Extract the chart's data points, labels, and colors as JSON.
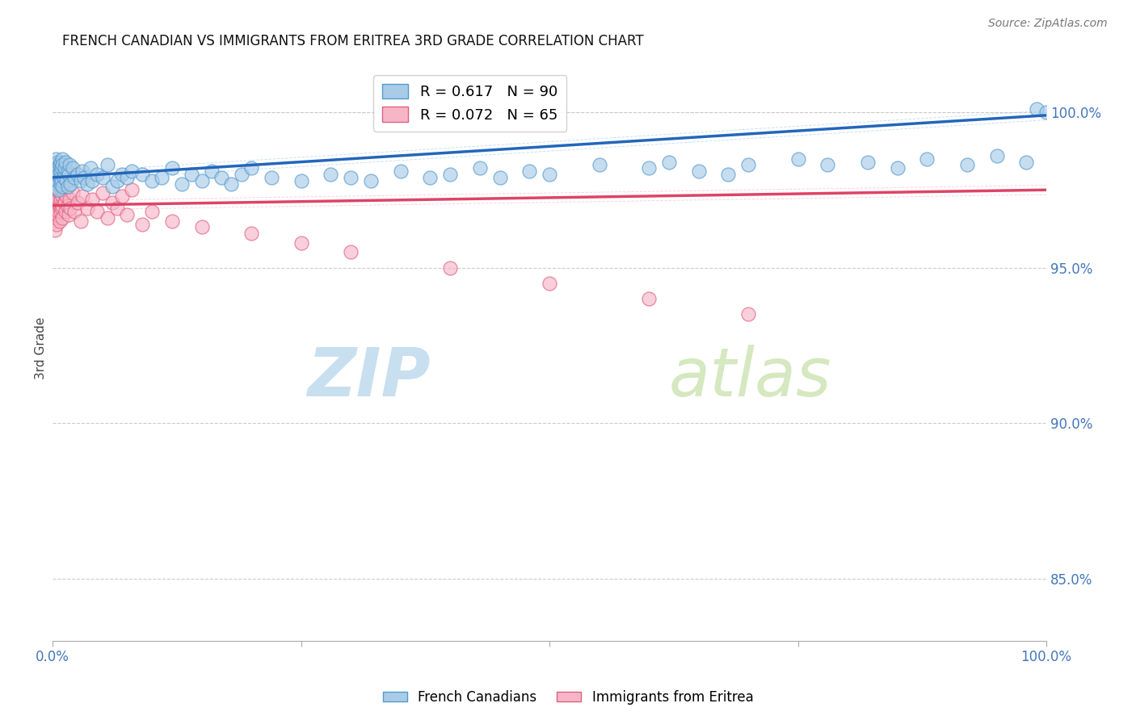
{
  "title": "FRENCH CANADIAN VS IMMIGRANTS FROM ERITREA 3RD GRADE CORRELATION CHART",
  "source": "Source: ZipAtlas.com",
  "ylabel": "3rd Grade",
  "right_yticks": [
    100.0,
    95.0,
    90.0,
    85.0
  ],
  "ylim_min": 83.0,
  "ylim_max": 101.8,
  "blue_R": 0.617,
  "blue_N": 90,
  "pink_R": 0.072,
  "pink_N": 65,
  "legend_blue": "French Canadians",
  "legend_pink": "Immigrants from Eritrea",
  "blue_color": "#a8cce8",
  "blue_edge": "#5599cc",
  "pink_color": "#f7b6c8",
  "pink_edge": "#e06080",
  "trend_blue": "#2266bb",
  "trend_pink": "#dd4466",
  "bg_color": "#ffffff",
  "grid_color": "#cccccc",
  "axis_color": "#4477bb",
  "title_color": "#111111",
  "watermark_zip_color": "#c8dff0",
  "watermark_atlas_color": "#d5e8c0",
  "blue_scatter_x": [
    0.001,
    0.002,
    0.002,
    0.003,
    0.003,
    0.003,
    0.004,
    0.004,
    0.005,
    0.005,
    0.005,
    0.006,
    0.006,
    0.007,
    0.007,
    0.008,
    0.008,
    0.008,
    0.009,
    0.009,
    0.01,
    0.01,
    0.01,
    0.011,
    0.011,
    0.012,
    0.013,
    0.014,
    0.015,
    0.015,
    0.016,
    0.017,
    0.018,
    0.02,
    0.022,
    0.025,
    0.028,
    0.03,
    0.032,
    0.035,
    0.038,
    0.04,
    0.045,
    0.05,
    0.055,
    0.06,
    0.065,
    0.07,
    0.075,
    0.08,
    0.09,
    0.1,
    0.11,
    0.12,
    0.13,
    0.14,
    0.15,
    0.16,
    0.17,
    0.18,
    0.19,
    0.2,
    0.22,
    0.25,
    0.28,
    0.3,
    0.32,
    0.35,
    0.38,
    0.4,
    0.43,
    0.45,
    0.48,
    0.5,
    0.55,
    0.6,
    0.62,
    0.65,
    0.68,
    0.7,
    0.99,
    1.0,
    0.75,
    0.78,
    0.82,
    0.85,
    0.88,
    0.92,
    0.95,
    0.98
  ],
  "blue_scatter_y": [
    97.8,
    98.2,
    97.9,
    98.3,
    97.6,
    98.5,
    97.8,
    98.1,
    98.4,
    97.7,
    98.2,
    98.0,
    97.5,
    98.3,
    97.9,
    98.1,
    98.4,
    97.7,
    98.2,
    97.8,
    98.5,
    97.6,
    98.3,
    98.0,
    97.9,
    98.2,
    98.4,
    97.8,
    98.1,
    97.6,
    98.0,
    98.3,
    97.7,
    98.2,
    97.9,
    98.0,
    97.8,
    98.1,
    97.9,
    97.7,
    98.2,
    97.8,
    98.0,
    97.9,
    98.3,
    97.6,
    97.8,
    98.0,
    97.9,
    98.1,
    98.0,
    97.8,
    97.9,
    98.2,
    97.7,
    98.0,
    97.8,
    98.1,
    97.9,
    97.7,
    98.0,
    98.2,
    97.9,
    97.8,
    98.0,
    97.9,
    97.8,
    98.1,
    97.9,
    98.0,
    98.2,
    97.9,
    98.1,
    98.0,
    98.3,
    98.2,
    98.4,
    98.1,
    98.0,
    98.3,
    100.1,
    100.0,
    98.5,
    98.3,
    98.4,
    98.2,
    98.5,
    98.3,
    98.6,
    98.4
  ],
  "pink_scatter_x": [
    0.001,
    0.001,
    0.001,
    0.002,
    0.002,
    0.002,
    0.002,
    0.003,
    0.003,
    0.003,
    0.003,
    0.004,
    0.004,
    0.004,
    0.005,
    0.005,
    0.005,
    0.005,
    0.006,
    0.006,
    0.006,
    0.007,
    0.007,
    0.007,
    0.008,
    0.008,
    0.009,
    0.009,
    0.01,
    0.01,
    0.01,
    0.011,
    0.012,
    0.013,
    0.014,
    0.015,
    0.016,
    0.017,
    0.018,
    0.02,
    0.022,
    0.025,
    0.028,
    0.03,
    0.035,
    0.04,
    0.045,
    0.05,
    0.055,
    0.06,
    0.065,
    0.07,
    0.075,
    0.08,
    0.09,
    0.1,
    0.12,
    0.15,
    0.2,
    0.25,
    0.3,
    0.4,
    0.5,
    0.6,
    0.7
  ],
  "pink_scatter_y": [
    97.5,
    97.2,
    96.8,
    97.6,
    97.0,
    96.5,
    96.2,
    97.3,
    96.9,
    97.5,
    96.6,
    97.1,
    96.4,
    97.4,
    97.8,
    96.7,
    97.3,
    97.0,
    97.5,
    96.8,
    97.2,
    97.0,
    96.5,
    97.4,
    97.2,
    96.8,
    97.5,
    96.9,
    97.3,
    97.0,
    96.6,
    97.4,
    97.1,
    96.8,
    97.3,
    97.0,
    96.7,
    97.2,
    96.9,
    97.4,
    96.8,
    97.1,
    96.5,
    97.3,
    96.9,
    97.2,
    96.8,
    97.4,
    96.6,
    97.1,
    96.9,
    97.3,
    96.7,
    97.5,
    96.4,
    96.8,
    96.5,
    96.3,
    96.1,
    95.8,
    95.5,
    95.0,
    94.5,
    94.0,
    93.5
  ]
}
